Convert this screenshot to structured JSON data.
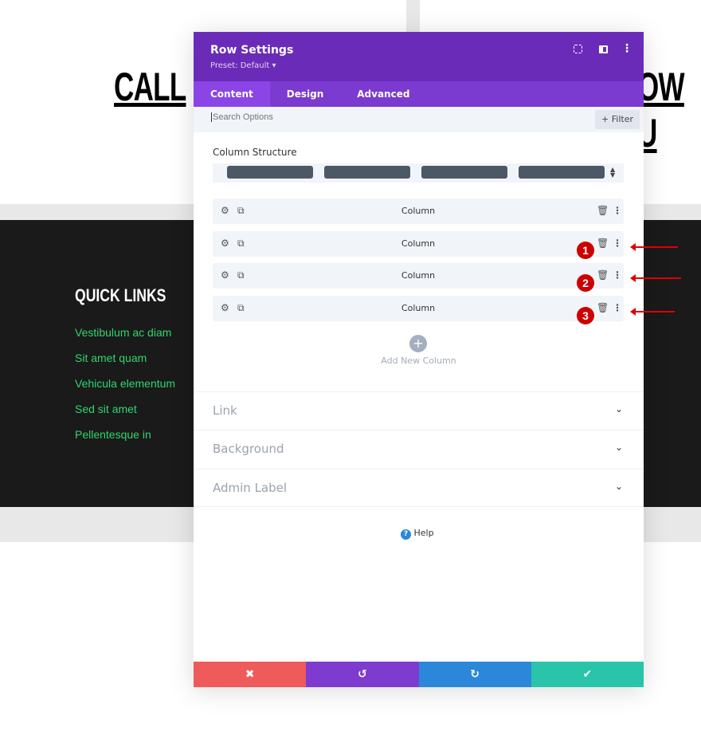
{
  "background": {
    "heading_left": "CALL",
    "heading_right": "OW U",
    "quick_links_title": "QUICK LINKS",
    "quick_links": [
      "Vestibulum ac diam",
      "Sit amet quam",
      "Vehicula elementum",
      "Sed sit amet",
      "Pellentesque in"
    ]
  },
  "modal": {
    "title": "Row Settings",
    "preset": "Preset: Default ▾",
    "tabs": [
      {
        "label": "Content",
        "active": true
      },
      {
        "label": "Design"
      },
      {
        "label": "Advanced"
      }
    ],
    "search_placeholder": "Search Options",
    "filter_label": "+ Filter",
    "column_structure_label": "Column Structure",
    "columns": [
      {
        "label": "Column"
      },
      {
        "label": "Column"
      },
      {
        "label": "Column"
      },
      {
        "label": "Column"
      }
    ],
    "add_column_label": "Add New Column",
    "sections": [
      "Link",
      "Background",
      "Admin Label"
    ],
    "help_label": "Help"
  },
  "annotations": [
    "1",
    "2",
    "3"
  ],
  "colors": {
    "header": "#6a2cb8",
    "tabs": "#7b3ad0",
    "cancel": "#ef5a5a",
    "undo": "#7e3bd0",
    "redo": "#2b87da",
    "save": "#29c4a9",
    "annotation": "#cc0000"
  }
}
